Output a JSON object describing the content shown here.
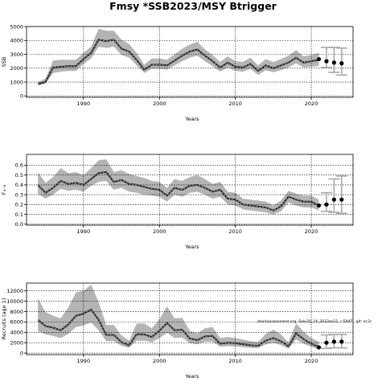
{
  "figure": {
    "title": "Fmsy *SSB2023/MSY Btrigger",
    "annotation": "stockassessment.org, Sole20_24_2022ex21, r:5947 , git: ec2c"
  },
  "chart_data": [
    {
      "type": "line",
      "ylabel": "SSB",
      "xlabel": "Years",
      "xlim": [
        1982.5,
        2025.5
      ],
      "ylim": [
        -100,
        5000
      ],
      "xticks": [
        1990,
        2000,
        2010,
        2020
      ],
      "yticks": [
        0,
        1000,
        2000,
        3000,
        4000,
        5000
      ],
      "ytick_labels": [
        "0",
        "1000",
        "2000",
        "3000",
        "4000",
        "5000"
      ],
      "grid": "dashed",
      "x": [
        1984,
        1985,
        1986,
        1987,
        1988,
        1989,
        1990,
        1991,
        1992,
        1993,
        1994,
        1995,
        1996,
        1997,
        1998,
        1999,
        2000,
        2001,
        2002,
        2003,
        2004,
        2005,
        2006,
        2007,
        2008,
        2009,
        2010,
        2011,
        2012,
        2013,
        2014,
        2015,
        2016,
        2017,
        2018,
        2019,
        2020,
        2021
      ],
      "estimate": [
        850,
        1000,
        2050,
        2100,
        2150,
        2150,
        2650,
        3100,
        4050,
        3950,
        4050,
        3400,
        3200,
        2600,
        1900,
        2250,
        2250,
        2200,
        2550,
        2900,
        3200,
        3350,
        2900,
        2500,
        2050,
        2400,
        2100,
        2050,
        2300,
        1800,
        2200,
        2000,
        2200,
        2400,
        2750,
        2400,
        2500,
        2600
      ],
      "lower": [
        750,
        900,
        1650,
        1750,
        1800,
        1800,
        2300,
        2700,
        3550,
        3450,
        3550,
        2950,
        2750,
        2200,
        1650,
        1950,
        1950,
        1900,
        2200,
        2500,
        2750,
        2900,
        2500,
        2150,
        1750,
        2050,
        1800,
        1750,
        1950,
        1500,
        1850,
        1700,
        1850,
        2050,
        2350,
        2050,
        2100,
        2150
      ],
      "upper": [
        1000,
        1250,
        2550,
        2600,
        2600,
        2600,
        3100,
        3550,
        4850,
        4700,
        4700,
        4050,
        3750,
        3100,
        2250,
        2700,
        2700,
        2600,
        3000,
        3400,
        3700,
        3900,
        3350,
        2950,
        2450,
        2850,
        2500,
        2450,
        2750,
        2200,
        2650,
        2450,
        2650,
        2900,
        3300,
        2850,
        2950,
        3100
      ],
      "forecast": {
        "x": [
          2021,
          2022,
          2023,
          2024
        ],
        "median": [
          2650,
          2500,
          2400,
          2350
        ],
        "lower": [
          2150,
          2050,
          1700,
          1500
        ],
        "upper": [
          3150,
          3500,
          3500,
          3450
        ]
      }
    },
    {
      "type": "line",
      "ylabel": "F₄₋₈",
      "xlabel": "Years",
      "xlim": [
        1982.5,
        2025.5
      ],
      "ylim": [
        -0.01,
        0.71
      ],
      "xticks": [
        1990,
        2000,
        2010,
        2020
      ],
      "yticks": [
        0.0,
        0.1,
        0.2,
        0.3,
        0.4,
        0.5,
        0.6
      ],
      "ytick_labels": [
        "0.0",
        "0.1",
        "0.2",
        "0.3",
        "0.4",
        "0.5",
        "0.6"
      ],
      "grid": "dashed",
      "x": [
        1984,
        1985,
        1986,
        1987,
        1988,
        1989,
        1990,
        1991,
        1992,
        1993,
        1994,
        1995,
        1996,
        1997,
        1998,
        1999,
        2000,
        2001,
        2002,
        2003,
        2004,
        2005,
        2006,
        2007,
        2008,
        2009,
        2010,
        2011,
        2012,
        2013,
        2014,
        2015,
        2016,
        2017,
        2018,
        2019,
        2020,
        2021
      ],
      "estimate": [
        0.4,
        0.32,
        0.37,
        0.44,
        0.41,
        0.42,
        0.4,
        0.46,
        0.52,
        0.53,
        0.43,
        0.45,
        0.41,
        0.4,
        0.38,
        0.36,
        0.35,
        0.29,
        0.37,
        0.35,
        0.39,
        0.4,
        0.37,
        0.33,
        0.35,
        0.26,
        0.25,
        0.2,
        0.19,
        0.18,
        0.17,
        0.14,
        0.18,
        0.28,
        0.25,
        0.23,
        0.23,
        0.19
      ],
      "lower": [
        0.31,
        0.26,
        0.3,
        0.36,
        0.34,
        0.35,
        0.33,
        0.39,
        0.43,
        0.44,
        0.35,
        0.37,
        0.33,
        0.32,
        0.3,
        0.29,
        0.28,
        0.23,
        0.3,
        0.28,
        0.32,
        0.33,
        0.3,
        0.26,
        0.28,
        0.2,
        0.19,
        0.15,
        0.14,
        0.13,
        0.12,
        0.1,
        0.13,
        0.22,
        0.19,
        0.17,
        0.17,
        0.14
      ],
      "upper": [
        0.53,
        0.42,
        0.48,
        0.57,
        0.52,
        0.53,
        0.5,
        0.57,
        0.65,
        0.66,
        0.53,
        0.55,
        0.51,
        0.49,
        0.47,
        0.44,
        0.43,
        0.37,
        0.46,
        0.44,
        0.48,
        0.5,
        0.46,
        0.41,
        0.43,
        0.33,
        0.32,
        0.26,
        0.25,
        0.24,
        0.23,
        0.19,
        0.24,
        0.34,
        0.31,
        0.29,
        0.29,
        0.25
      ],
      "forecast": {
        "x": [
          2021,
          2022,
          2023,
          2024
        ],
        "median": [
          0.19,
          0.2,
          0.25,
          0.25
        ],
        "lower": [
          0.13,
          0.13,
          0.12,
          0.11
        ],
        "upper": [
          0.25,
          0.32,
          0.46,
          0.49
        ]
      }
    },
    {
      "type": "line",
      "ylabel": "Recruits (age 1)",
      "xlabel": "Years",
      "xlim": [
        1982.5,
        2025.5
      ],
      "ylim": [
        -300,
        13500
      ],
      "xticks": [
        1990,
        2000,
        2010,
        2020
      ],
      "yticks": [
        0,
        2000,
        4000,
        6000,
        8000,
        10000,
        12000
      ],
      "ytick_labels": [
        "0",
        "2000",
        "4000",
        "6000",
        "8000",
        "10000",
        "12000"
      ],
      "grid": "dashed",
      "x": [
        1984,
        1985,
        1986,
        1987,
        1988,
        1989,
        1990,
        1991,
        1992,
        1993,
        1994,
        1995,
        1996,
        1997,
        1998,
        1999,
        2000,
        2001,
        2002,
        2003,
        2004,
        2005,
        2006,
        2007,
        2008,
        2009,
        2010,
        2011,
        2012,
        2013,
        2014,
        2015,
        2016,
        2017,
        2018,
        2019,
        2020,
        2021
      ],
      "estimate": [
        6400,
        5200,
        4900,
        4400,
        5500,
        7200,
        7600,
        8400,
        6400,
        3500,
        3500,
        2100,
        1500,
        3600,
        3600,
        3100,
        4300,
        5800,
        4400,
        4500,
        2800,
        2500,
        3200,
        3300,
        1800,
        2000,
        1900,
        1700,
        1500,
        1400,
        2400,
        2900,
        2300,
        1300,
        3800,
        2700,
        1800,
        1200
      ],
      "lower": [
        4200,
        3600,
        3300,
        2900,
        3700,
        5000,
        5300,
        5900,
        4400,
        2300,
        2300,
        1400,
        1000,
        2400,
        2400,
        2100,
        2900,
        3900,
        2900,
        3000,
        1900,
        1700,
        2200,
        2200,
        1200,
        1350,
        1300,
        1150,
        1000,
        950,
        1650,
        2000,
        1550,
        850,
        2600,
        1800,
        1200,
        700
      ],
      "upper": [
        10500,
        7900,
        7200,
        6700,
        8800,
        11700,
        12000,
        13200,
        9800,
        5400,
        5400,
        3400,
        2400,
        5700,
        5700,
        4800,
        6500,
        9000,
        6700,
        6800,
        4300,
        3800,
        4800,
        5000,
        2900,
        3100,
        2900,
        2600,
        2300,
        2150,
        3700,
        4500,
        3600,
        2100,
        5700,
        4100,
        2900,
        2200
      ],
      "forecast": {
        "x": [
          2021,
          2022,
          2023,
          2024
        ],
        "median": [
          1100,
          2000,
          2200,
          2200
        ],
        "lower": [
          400,
          900,
          1000,
          1000
        ],
        "upper": [
          2200,
          3500,
          3600,
          3600
        ]
      }
    }
  ]
}
